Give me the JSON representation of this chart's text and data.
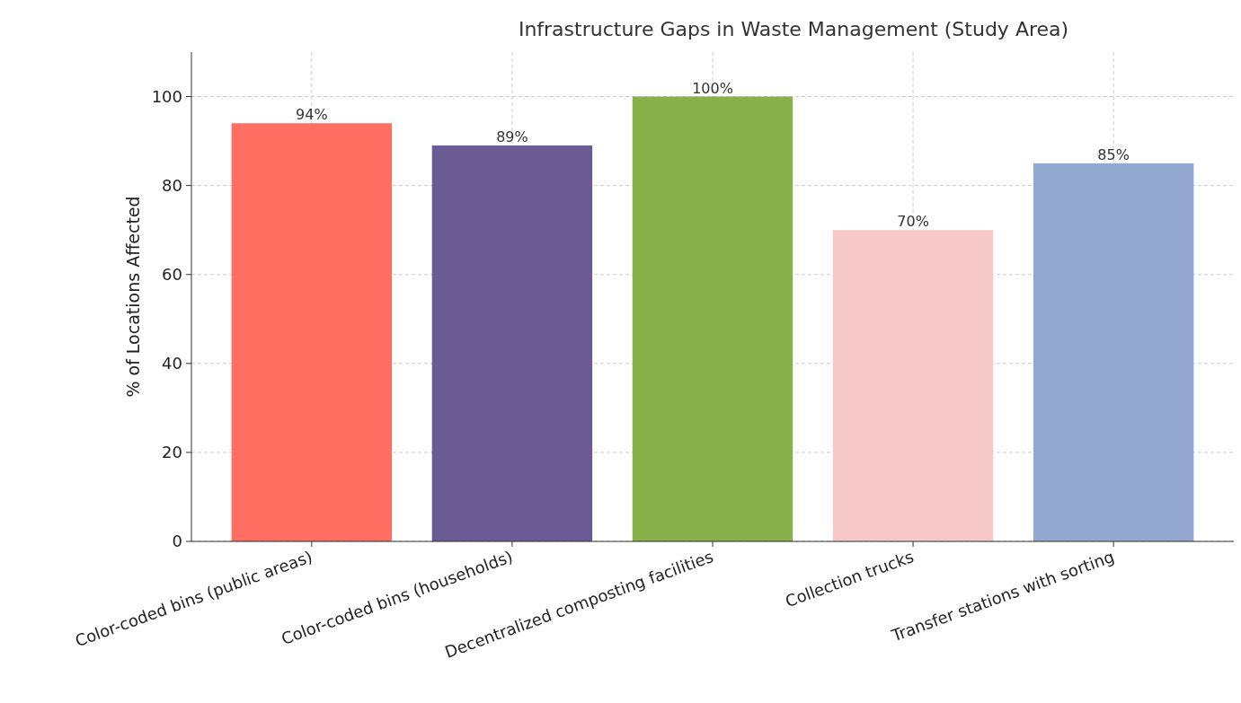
{
  "chart_data": {
    "type": "bar",
    "title": "Infrastructure Gaps in Waste Management (Study Area)",
    "ylabel": "% of Locations Affected",
    "categories": [
      "Color-coded bins (public areas)",
      "Color-coded bins (households)",
      "Decentralized composting facilities",
      "Collection trucks",
      "Transfer stations with sorting"
    ],
    "values": [
      94,
      89,
      100,
      70,
      85
    ],
    "colors": [
      "#ff6f61",
      "#6b5b95",
      "#88b04b",
      "#f7cac9",
      "#92a8d1"
    ],
    "value_labels": [
      "94%",
      "89%",
      "100%",
      "70%",
      "85%"
    ],
    "ylim": [
      0,
      110
    ],
    "yticks": [
      0,
      20,
      40,
      60,
      80,
      100
    ],
    "grid": true
  }
}
